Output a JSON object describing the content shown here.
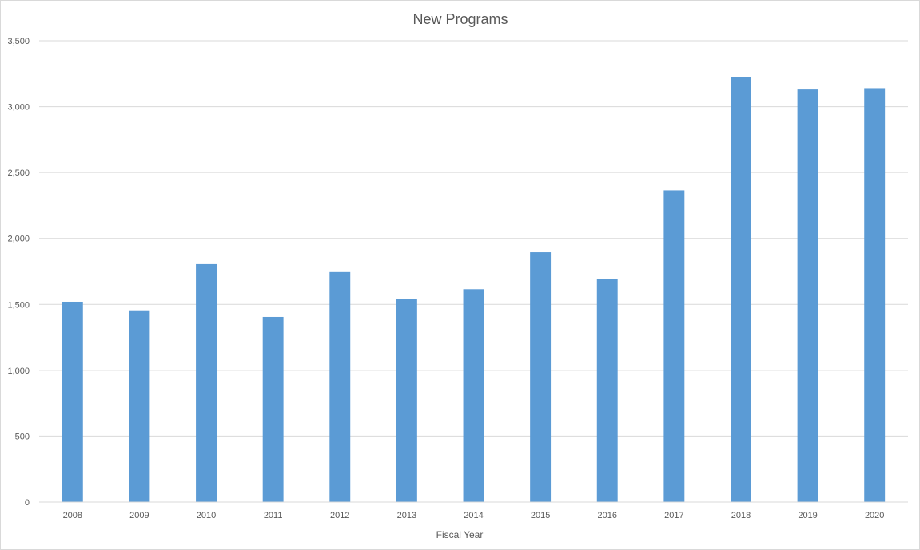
{
  "chart_data": {
    "type": "bar",
    "title": "New Programs",
    "xlabel": "Fiscal Year",
    "ylabel": "",
    "categories": [
      "2008",
      "2009",
      "2010",
      "2011",
      "2012",
      "2013",
      "2014",
      "2015",
      "2016",
      "2017",
      "2018",
      "2019",
      "2020"
    ],
    "values": [
      1520,
      1455,
      1805,
      1405,
      1745,
      1540,
      1615,
      1895,
      1695,
      2365,
      3225,
      3130,
      3140
    ],
    "ylim": [
      0,
      3500
    ],
    "yticks": [
      0,
      500,
      1000,
      1500,
      2000,
      2500,
      3000,
      3500
    ],
    "ytick_labels": [
      "0",
      "500",
      "1,000",
      "1,500",
      "2,000",
      "2,500",
      "3,000",
      "3,500"
    ],
    "grid": true,
    "legend": "none",
    "bar_color": "#5b9bd5"
  }
}
